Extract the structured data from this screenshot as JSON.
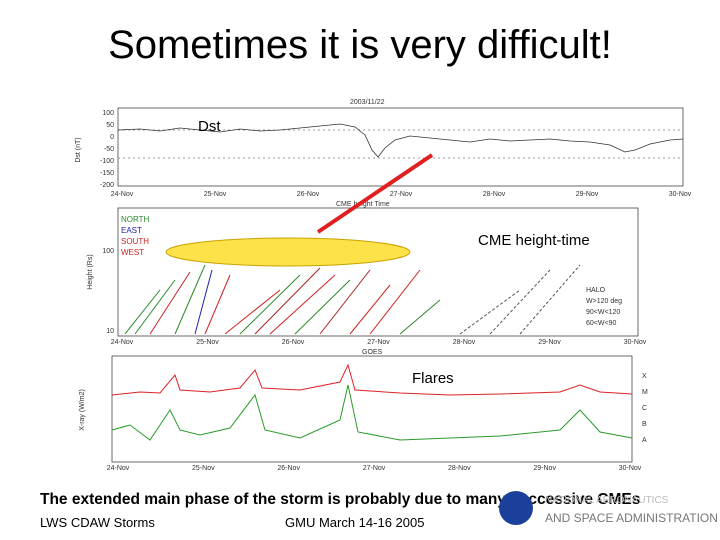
{
  "title": "Sometimes it is very difficult!",
  "figure": {
    "dst_panel": {
      "header": "2003/11/22",
      "label": "Dst",
      "y_axis_label": "Dst (nT)",
      "y_ticks": [
        "100",
        "50",
        "0",
        "-50",
        "-100",
        "-150",
        "-200"
      ],
      "x_ticks": [
        "24-Nov",
        "25-Nov",
        "26-Nov",
        "27-Nov",
        "28-Nov",
        "29-Nov",
        "30-Nov"
      ]
    },
    "cme_panel": {
      "header": "CME height Time",
      "label": "CME height-time",
      "y_axis_label": "Height (Rs)",
      "y_ticks": [
        "100",
        "10"
      ],
      "legend_left": [
        "NORTH",
        "EAST",
        "SOUTH",
        "WEST"
      ],
      "legend_right": [
        "HALO",
        "W>120 deg",
        "90<W<120",
        "60<W<90"
      ],
      "x_ticks": [
        "24-Nov",
        "25-Nov",
        "26-Nov",
        "27-Nov",
        "28-Nov",
        "29-Nov",
        "30-Nov"
      ]
    },
    "flare_panel": {
      "header": "GOES",
      "label": "Flares",
      "y_axis_label": "X-ray (W/m2)",
      "classes": [
        "X",
        "M",
        "C",
        "B",
        "A"
      ],
      "x_ticks": [
        "24-Nov",
        "25-Nov",
        "26-Nov",
        "27-Nov",
        "28-Nov",
        "29-Nov",
        "30-Nov"
      ]
    }
  },
  "caption": "The extended main phase of the storm is probably due to many successive CMEs",
  "footer": {
    "left": "LWS CDAW Storms",
    "center": "GMU March 14-16 2005"
  },
  "logo": {
    "line1": "NATIONAL AERONAUTICS",
    "line2": "AND SPACE ADMINISTRATION"
  }
}
